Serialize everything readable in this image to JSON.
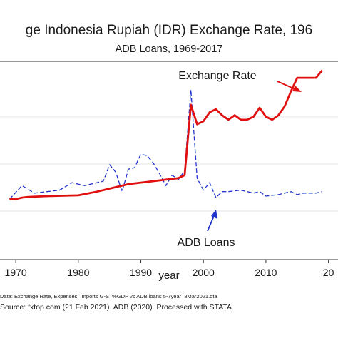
{
  "chart_data": {
    "type": "line",
    "title": "ge Indonesia Rupiah (IDR) Exchange Rate, 196",
    "subtitle": "ADB Loans, 1969-2017",
    "xlabel": "year",
    "ylabel": "",
    "xlim": [
      1968,
      2020
    ],
    "ylim": [
      0,
      100
    ],
    "x_ticks": [
      "1970",
      "1980",
      "1990",
      "2000",
      "2010",
      "20"
    ],
    "grid": "horizontal",
    "series": [
      {
        "name": "Exchange Rate",
        "color": "#e01010",
        "style": "solid",
        "points": [
          [
            1969,
            8
          ],
          [
            1970,
            8
          ],
          [
            1971,
            9
          ],
          [
            1972,
            9.5
          ],
          [
            1975,
            10
          ],
          [
            1980,
            10.5
          ],
          [
            1983,
            13
          ],
          [
            1986,
            16
          ],
          [
            1988,
            18
          ],
          [
            1990,
            19
          ],
          [
            1994,
            21
          ],
          [
            1996,
            22
          ],
          [
            1997,
            24
          ],
          [
            1998,
            71
          ],
          [
            1999,
            58
          ],
          [
            2000,
            60
          ],
          [
            2001,
            66
          ],
          [
            2002,
            68
          ],
          [
            2003,
            64
          ],
          [
            2004,
            61
          ],
          [
            2005,
            64
          ],
          [
            2006,
            61
          ],
          [
            2007,
            61
          ],
          [
            2008,
            63
          ],
          [
            2009,
            69
          ],
          [
            2010,
            63
          ],
          [
            2011,
            61
          ],
          [
            2012,
            64
          ],
          [
            2013,
            70
          ],
          [
            2014,
            80
          ],
          [
            2015,
            89
          ],
          [
            2016,
            89
          ],
          [
            2017,
            89
          ],
          [
            2018,
            89
          ],
          [
            2019,
            94
          ]
        ]
      },
      {
        "name": "ADB Loans",
        "color": "#2233cc",
        "style": "dashed",
        "points": [
          [
            1969,
            8
          ],
          [
            1971,
            17
          ],
          [
            1973,
            12
          ],
          [
            1975,
            13
          ],
          [
            1977,
            14
          ],
          [
            1979,
            19
          ],
          [
            1981,
            17
          ],
          [
            1983,
            19
          ],
          [
            1984,
            20
          ],
          [
            1985,
            31
          ],
          [
            1986,
            26
          ],
          [
            1987,
            13
          ],
          [
            1988,
            28
          ],
          [
            1989,
            29
          ],
          [
            1990,
            38
          ],
          [
            1991,
            37
          ],
          [
            1992,
            32
          ],
          [
            1993,
            25
          ],
          [
            1994,
            17
          ],
          [
            1995,
            24
          ],
          [
            1996,
            21
          ],
          [
            1997,
            27
          ],
          [
            1998,
            81
          ],
          [
            1999,
            22
          ],
          [
            2000,
            14
          ],
          [
            2001,
            19
          ],
          [
            2002,
            9
          ],
          [
            2003,
            13
          ],
          [
            2004,
            13
          ],
          [
            2006,
            14
          ],
          [
            2008,
            12
          ],
          [
            2009,
            13
          ],
          [
            2010,
            10
          ],
          [
            2012,
            11
          ],
          [
            2014,
            13
          ],
          [
            2015,
            11
          ],
          [
            2016,
            12
          ],
          [
            2018,
            12
          ],
          [
            2019,
            13
          ]
        ]
      }
    ],
    "annotations": [
      {
        "text": "Exchange Rate",
        "target_series": "Exchange Rate"
      },
      {
        "text": "ADB Loans",
        "target_series": "ADB Loans"
      }
    ],
    "notes": [
      "Data: Exchange Rate, Expenses, Imports G-S_%GDP vs ADB loans 5-7year_8Mar2021.dta",
      "Source: fxtop.com  (21 Feb 2021). ADB (2020). Processed with STATA"
    ]
  }
}
